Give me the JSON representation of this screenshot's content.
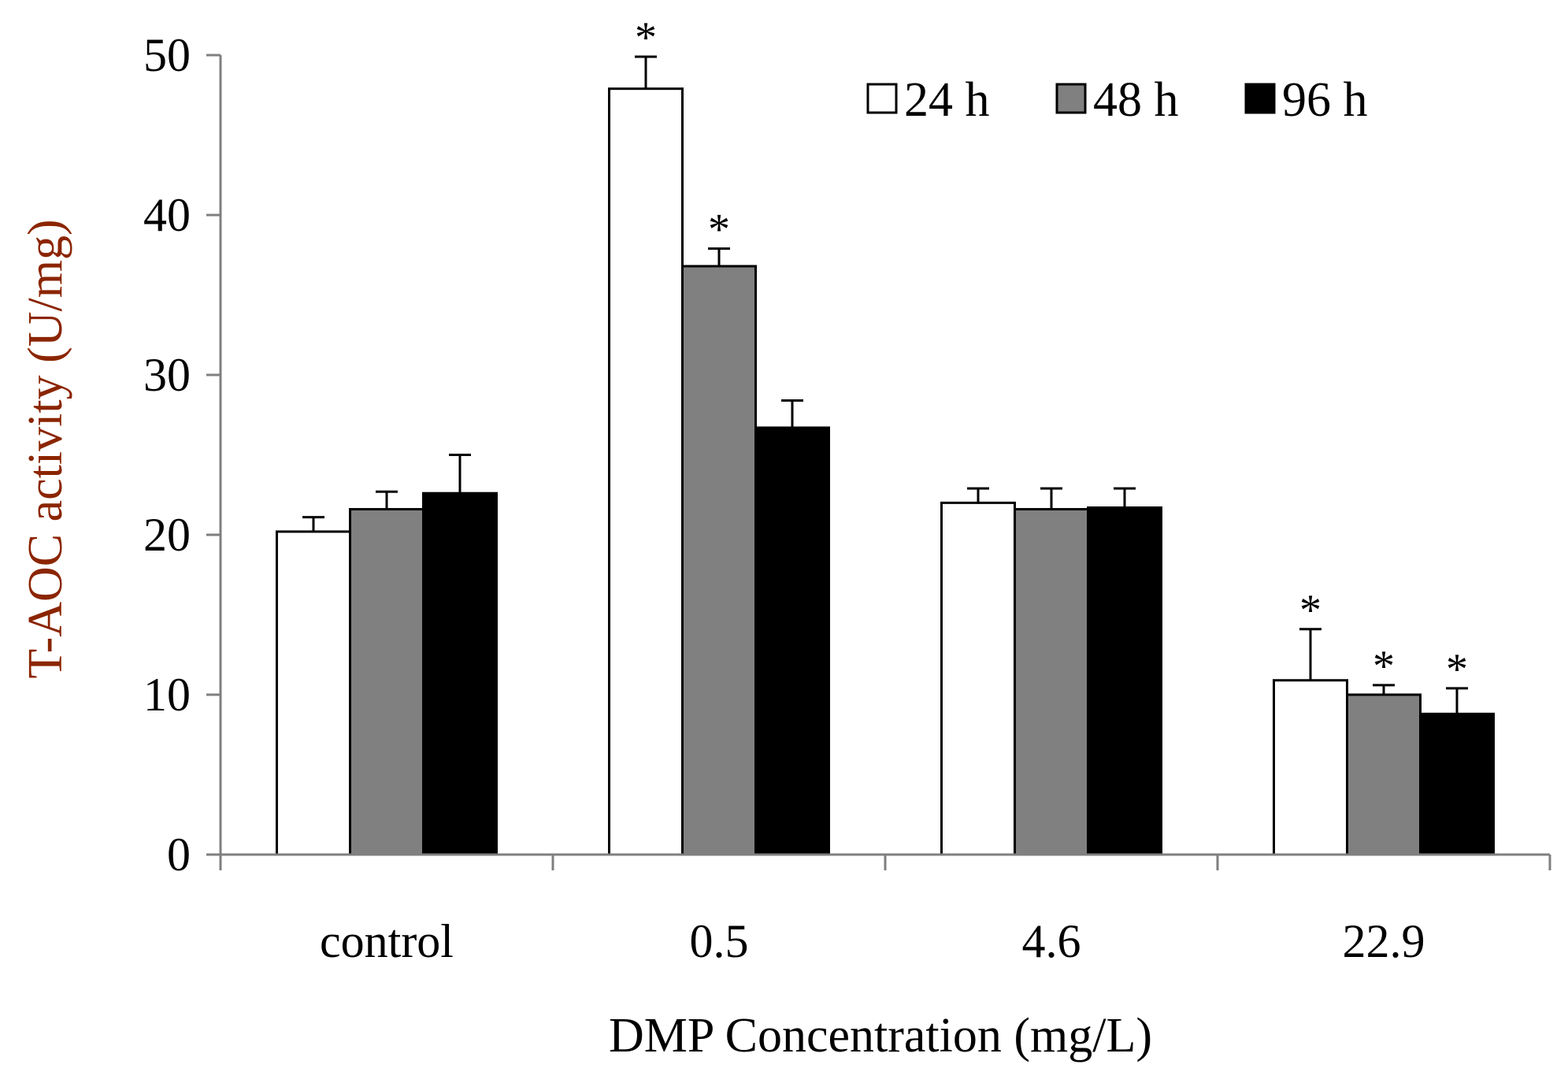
{
  "chart_data": {
    "type": "bar",
    "title": "",
    "xlabel": "DMP Concentration (mg/L)",
    "ylabel": "T-AOC activity (U/mg)",
    "ylim": [
      0,
      50
    ],
    "yticks": [
      0,
      10,
      20,
      30,
      40,
      50
    ],
    "categories": [
      "control",
      "0.5",
      "4.6",
      "22.9"
    ],
    "series": [
      {
        "name": "24 h",
        "color": "#ffffff",
        "values": [
          20.2,
          47.9,
          22.0,
          10.9
        ],
        "errors": [
          0.9,
          2.0,
          0.9,
          3.2
        ],
        "significant": [
          false,
          true,
          false,
          true
        ]
      },
      {
        "name": "48 h",
        "color": "#808080",
        "values": [
          21.6,
          36.8,
          21.6,
          10.0
        ],
        "errors": [
          1.1,
          1.1,
          1.3,
          0.6
        ],
        "significant": [
          false,
          true,
          false,
          true
        ]
      },
      {
        "name": "96 h",
        "color": "#000000",
        "values": [
          22.6,
          26.7,
          21.7,
          8.8
        ],
        "errors": [
          2.4,
          1.7,
          1.2,
          1.6
        ],
        "significant": [
          false,
          false,
          false,
          true
        ]
      }
    ],
    "significance_marker": "*",
    "legend_position": "top-right",
    "grid": false
  }
}
